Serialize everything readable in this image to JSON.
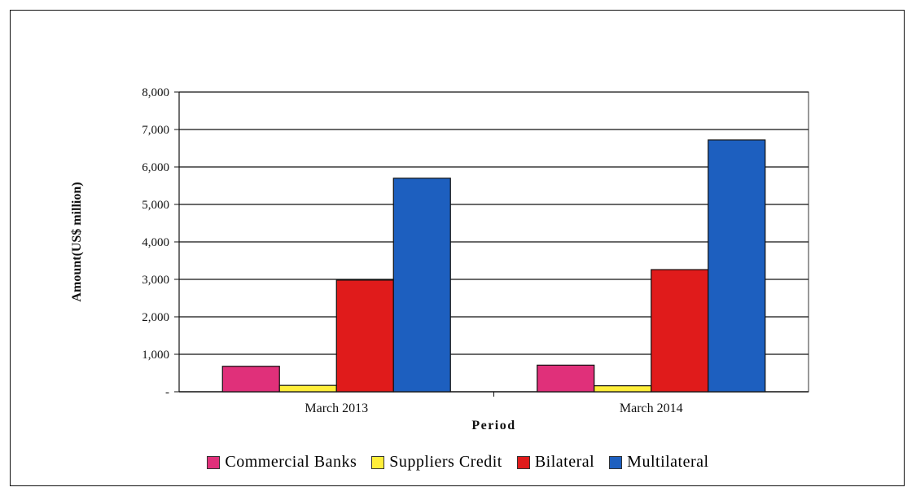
{
  "chart_data": {
    "type": "bar",
    "categories": [
      "March 2013",
      "March 2014"
    ],
    "series": [
      {
        "name": "Commercial Banks",
        "values": [
          680,
          710
        ],
        "color": "#e0307a"
      },
      {
        "name": "Suppliers Credit",
        "values": [
          170,
          160
        ],
        "color": "#ffee3a"
      },
      {
        "name": "Bilateral",
        "values": [
          2980,
          3260
        ],
        "color": "#e01b1b"
      },
      {
        "name": "Multilateral",
        "values": [
          5700,
          6720
        ],
        "color": "#1d5fbf"
      }
    ],
    "title": "",
    "xlabel": "Period",
    "ylabel": "Amount(US$ million)",
    "ylim": [
      0,
      8000
    ],
    "yticks": [
      0,
      1000,
      2000,
      3000,
      4000,
      5000,
      6000,
      7000,
      8000
    ],
    "ytick_labels": [
      "-",
      "1,000",
      "2,000",
      "3,000",
      "4,000",
      "5,000",
      "6,000",
      "7,000",
      "8,000"
    ],
    "grid": true,
    "legend_position": "bottom"
  }
}
